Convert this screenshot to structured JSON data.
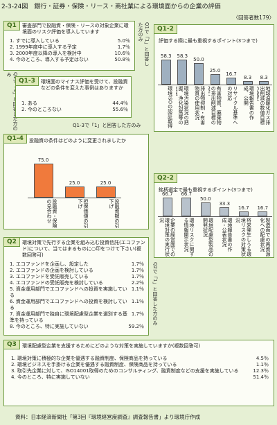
{
  "title": "2-3-24図　銀行・証券・保険・リース・商社業による環境面からの企業の評価",
  "respondents": "〈回答者数179〉",
  "q1": {
    "label": "Q1",
    "question": "審査部門で投融資・保険・リースの対象企業に環境面のリスク評価を導入しています",
    "items": [
      {
        "text": "1. すでに導入している",
        "value": "5.0％"
      },
      {
        "text": "2. 1999年度中に導入する予定",
        "value": "1.7％"
      },
      {
        "text": "3. 2000年度以降の導入を検討中",
        "value": "10.6％"
      },
      {
        "text": "4. 今のところ、導入する予定はない",
        "value": "50.8％"
      }
    ]
  },
  "note_q1_1": "Q1で「1」と回答した方のみ",
  "note_q1_4": "Q1で「4」と回答した方のみ",
  "q1_3": {
    "label": "Q1-3",
    "question": "環境面のマイナス評価を受けて、投融資などの条件を変えた事例はありますか",
    "items": [
      {
        "text": "1. ある",
        "value": "44.4％"
      },
      {
        "text": "2. 今のところない",
        "value": "55.6％"
      }
    ]
  },
  "note_q1_3": "Q1-3で「1」と回答した方のみ",
  "q2": {
    "label": "Q2",
    "question": "環境対策で先行する企業を組み込む投資信託(エコファンド)について、当てはまるものに○印をつけて下さい(複数回答可)",
    "items": [
      {
        "text": "1. エコファンドを企画し、設定した",
        "value": "1.7％"
      },
      {
        "text": "2. エコファンドの企画を検討している",
        "value": "1.7％"
      },
      {
        "text": "3. エコファンドを受託販売している",
        "value": "1.7％"
      },
      {
        "text": "4. エコファンドの受託販売を検討している",
        "value": "2.2％"
      },
      {
        "text": "5. 資金運用部門でエコファンドへの投資を実施している",
        "value": "1.1％"
      },
      {
        "text": "6. 資金運用部門でエコファンドへの投資を検討している",
        "value": "1.1％"
      },
      {
        "text": "7. 資金運用部門で独自に環境配慮型企業を選別する基準を持っている",
        "value": "1.7％"
      },
      {
        "text": "8. 今のところ、特に実施していない",
        "value": "59.2％"
      }
    ]
  },
  "note_q2": "Q2で「1」と回答した方のみ",
  "q3": {
    "label": "Q3",
    "question": "環境配慮型企業を支援するためにどのような対策を実施していますか(複数回答可)",
    "items": [
      {
        "text": "1. 環境対策に積極的な企業を優遇する融資制度、保険商品を持っている",
        "value": "4.5％"
      },
      {
        "text": "2. 環境ビジネスを手掛ける企業を優遇する融資制度、保険商品を持っている",
        "value": "1.1％"
      },
      {
        "text": "3. 取引先企業に対して、ISO14001取得のためのコンサルティング、融資制度などの支援を実施している",
        "value": "12.3％"
      },
      {
        "text": "4. 今のところ、特に実施していない",
        "value": "51.4％"
      }
    ]
  },
  "chart_data": [
    {
      "type": "bar",
      "label": "Q1-2",
      "title": "評価する際に最も重視するポイント(3つまで)",
      "categories": [
        "環境ISOの認証取得",
        "環境汚染状況の把握、浄化対策等の実施",
        "排出物抑制・有害物質の使用状況",
        "有害物質、廃棄物の排出削減目標の設定",
        "リサイクル基準への対応",
        "環境報告書の作成、公開",
        "地球温暖化ガス排出削減の数値目標の設定"
      ],
      "values": [
        58.3,
        58.3,
        50.0,
        25.0,
        16.7,
        8.3,
        8.3
      ],
      "value_labels": [
        "58.3",
        "58.3",
        "50.0",
        "25.0",
        "16.7",
        "8.3",
        "8.3"
      ],
      "color": "#9fb0c0",
      "ylim": [
        0,
        100
      ]
    },
    {
      "type": "bar",
      "label": "Q1-4",
      "title": "投融資の条件はどのように変更されましたか",
      "categories": [
        "投融資・保険の見合わせ",
        "担保価値の引下げ",
        "投融資額の引下げ"
      ],
      "values": [
        75.0,
        25.0,
        25.0
      ],
      "value_labels": [
        "75.0",
        "25.0",
        "25.0"
      ],
      "color": "#f07a3c",
      "ylim": [
        0,
        100
      ]
    },
    {
      "type": "bar",
      "label": "Q2-2",
      "title": "銘柄選定で最も重視するポイント(3つまで)",
      "categories": [
        "企業の経営面での環境対策の実行状況",
        "環境リスクに関する情報開示状況",
        "環境配慮型製品の開発状況",
        "環境報告書の作成・公表状況",
        "将来発生しうる環境リスクの対策状況",
        "製造面での再資源化への配慮状況"
      ],
      "values": [
        66.7,
        66.7,
        50.0,
        33.3,
        16.7,
        16.7
      ],
      "value_labels": [
        "66.7",
        "66.7",
        "50.0",
        "33.3",
        "16.7",
        "16.7"
      ],
      "color": "#b8c2cc",
      "ylim": [
        0,
        100
      ]
    }
  ],
  "source": "資料：日本経済新聞社「第3回『環境経営度調査』調査報告書」より環境庁作成"
}
